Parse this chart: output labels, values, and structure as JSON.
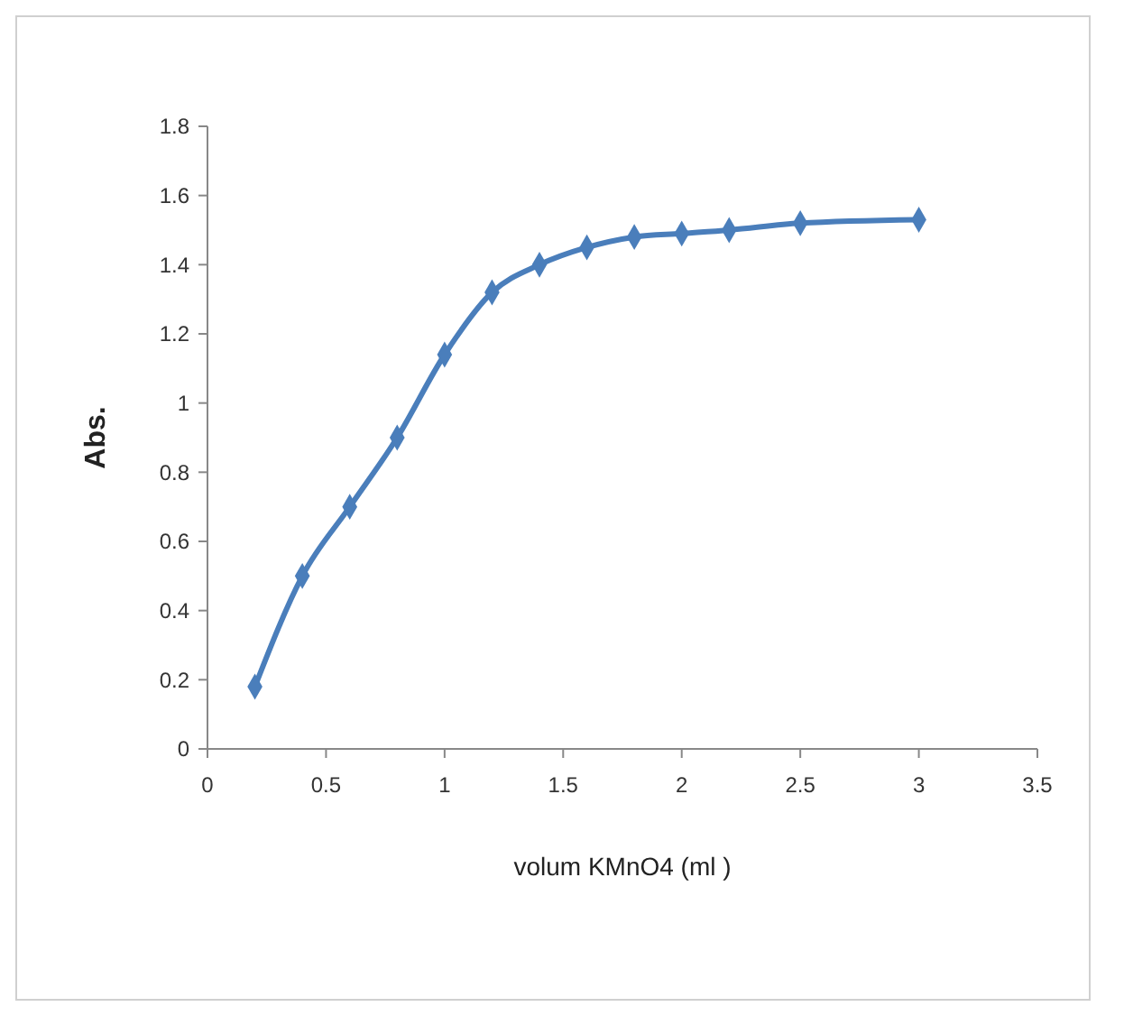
{
  "chart_data": {
    "type": "line",
    "xlabel": "volum  KMnO4 (ml )",
    "ylabel": "Abs.",
    "x": [
      0.2,
      0.4,
      0.6,
      0.8,
      1.0,
      1.2,
      1.4,
      1.6,
      1.8,
      2.0,
      2.2,
      2.5,
      3.0
    ],
    "series": [
      {
        "color": "#4a7ebb",
        "values": [
          0.18,
          0.5,
          0.7,
          0.9,
          1.14,
          1.32,
          1.4,
          1.45,
          1.48,
          1.49,
          1.5,
          1.52,
          1.53
        ]
      }
    ],
    "xlim": [
      0,
      3.5
    ],
    "xticks": [
      0,
      0.5,
      1,
      1.5,
      2,
      2.5,
      3,
      3.5
    ],
    "ylim": [
      0,
      1.8
    ],
    "yticks": [
      0,
      0.2,
      0.4,
      0.6,
      0.8,
      1,
      1.2,
      1.4,
      1.6,
      1.8
    ],
    "grid": false,
    "marker": "diamond",
    "line_style": "solid"
  }
}
